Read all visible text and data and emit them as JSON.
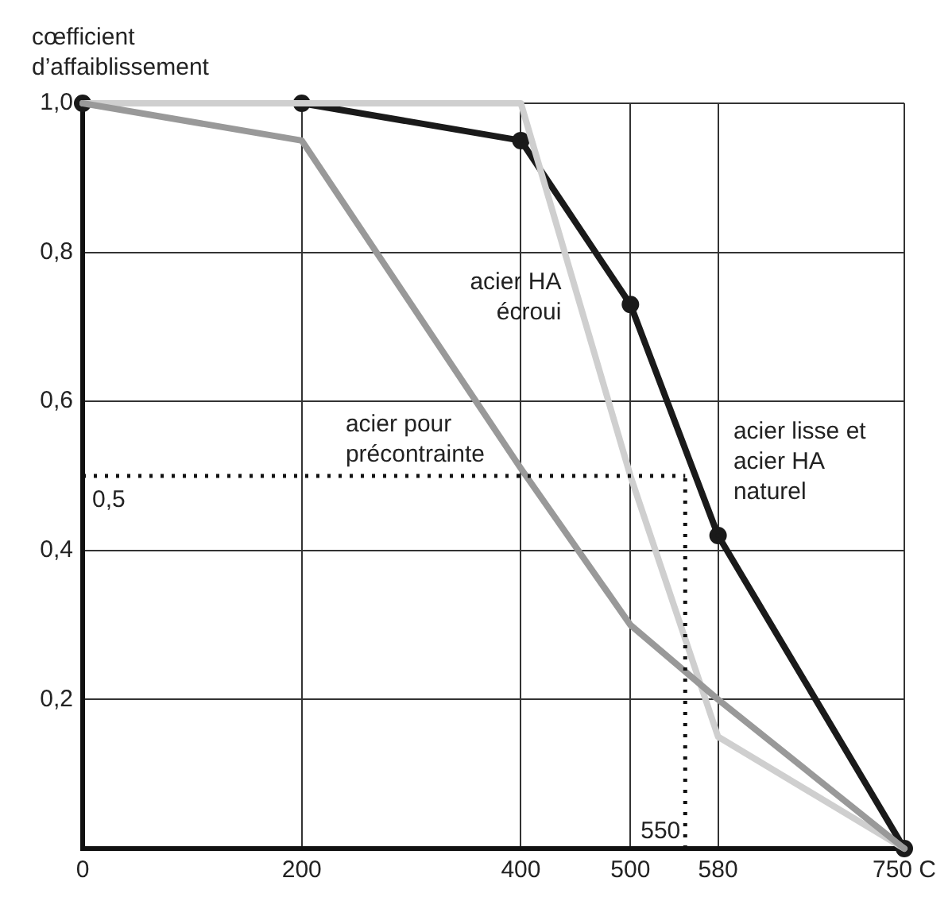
{
  "chart_data": {
    "type": "line",
    "ylabel": "cœfficient d’affaiblissement",
    "x": [
      0,
      200,
      400,
      500,
      580,
      750
    ],
    "series": [
      {
        "name": "acier lisse et acier HA naturel",
        "color": "#1a1a1a",
        "marker": "circle",
        "values": [
          1.0,
          1.0,
          0.95,
          0.73,
          0.42,
          0
        ]
      },
      {
        "name": "acier HA écroui",
        "color": "#cfcfcf",
        "marker": "none",
        "x": [
          0,
          400,
          500,
          580,
          750
        ],
        "values": [
          1.0,
          1.0,
          0.5,
          0.15,
          0
        ]
      },
      {
        "name": "acier pour précontrainte",
        "color": "#999999",
        "marker": "none",
        "values": [
          1.0,
          0.95,
          0.51,
          0.3,
          0.2,
          0
        ]
      }
    ],
    "xlim": [
      0,
      750
    ],
    "ylim": [
      0,
      1
    ],
    "xticks": [
      0,
      200,
      400,
      500,
      580,
      {
        "value": 750,
        "label": "750 C"
      }
    ],
    "yticks": [
      {
        "value": 0.2,
        "label": "0,2"
      },
      {
        "value": 0.4,
        "label": "0,4"
      },
      {
        "value": 0.6,
        "label": "0,6"
      },
      {
        "value": 0.8,
        "label": "0,8"
      },
      {
        "value": 1.0,
        "label": "1,0"
      }
    ],
    "ref_lines": [
      {
        "axis": "y",
        "value": 0.5,
        "label": "0,5",
        "line_style": "dotted"
      },
      {
        "axis": "x",
        "value": 550,
        "label": "550",
        "line_style": "dotted"
      }
    ],
    "grid": true,
    "legend": false
  }
}
